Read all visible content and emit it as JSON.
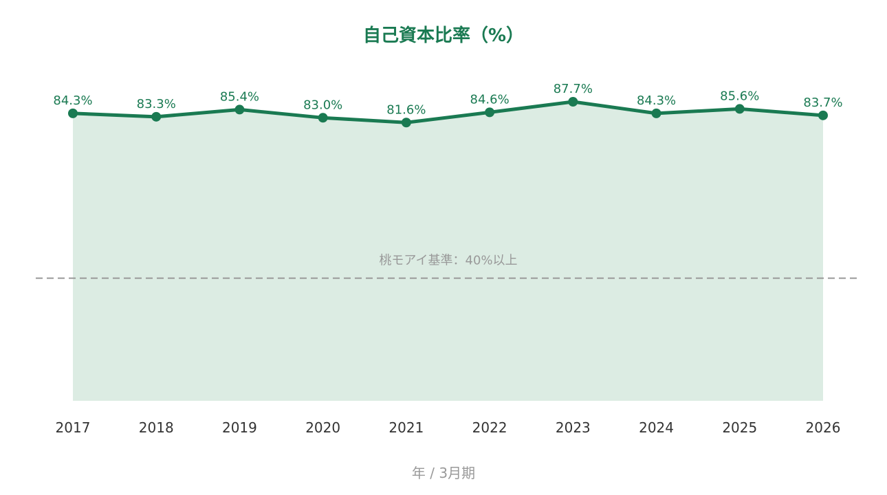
{
  "chart_data": {
    "type": "area",
    "title": "自己資本比率（%）",
    "xlabel": "年 / 3月期",
    "ylabel": "",
    "categories": [
      "2017",
      "2018",
      "2019",
      "2020",
      "2021",
      "2022",
      "2023",
      "2024",
      "2025",
      "2026"
    ],
    "values": [
      84.3,
      83.3,
      85.4,
      83.0,
      81.6,
      84.6,
      87.7,
      84.3,
      85.6,
      83.7
    ],
    "value_labels": [
      "84.3%",
      "83.3%",
      "85.4%",
      "83.0%",
      "81.6%",
      "84.6%",
      "87.7%",
      "84.3%",
      "85.6%",
      "83.7%"
    ],
    "ylim": [
      0,
      100
    ],
    "grid": false,
    "reference_line": {
      "value": 40,
      "label": "桃モアイ基準：40%以上",
      "style": "dashed"
    },
    "colors": {
      "line": "#1a7a52",
      "fill": "#dcece3",
      "reference": "#999999"
    }
  }
}
